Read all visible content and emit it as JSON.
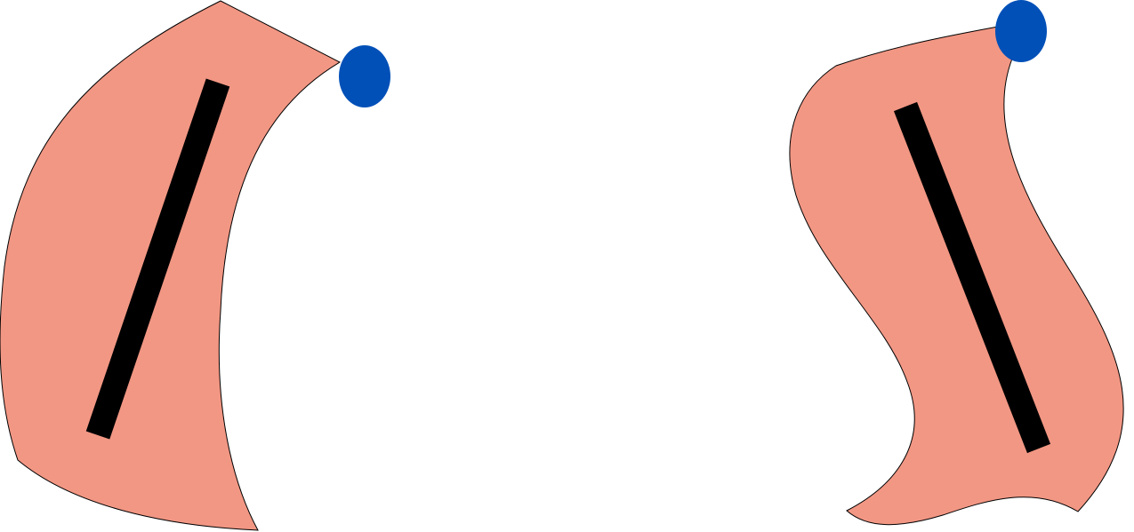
{
  "colors": {
    "background": "#ffffff",
    "shape_fill": "#f29784",
    "shape_stroke": "#000000",
    "bar": "#000000",
    "dot": "#0050b8"
  },
  "figures": [
    {
      "name": "left-curved-strip",
      "icon": "curved-strip-shape",
      "has_bar": true,
      "has_dot": true
    },
    {
      "name": "right-wavy-strip",
      "icon": "wavy-strip-shape",
      "has_bar": true,
      "has_dot": true
    }
  ]
}
